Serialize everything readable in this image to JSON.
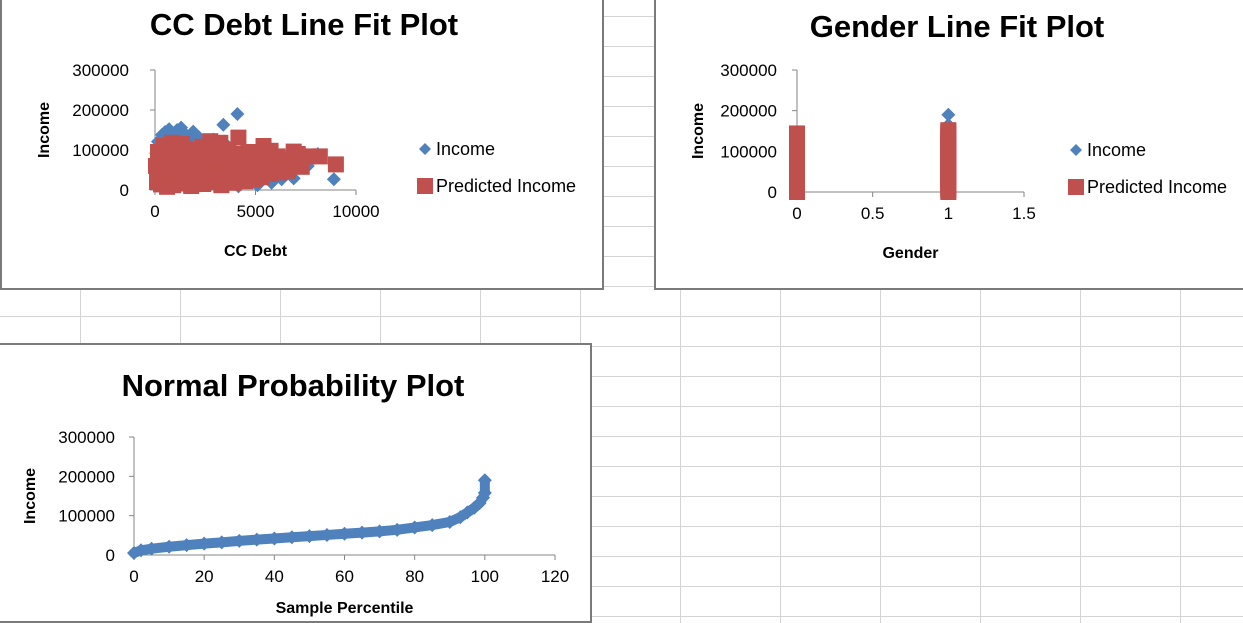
{
  "colors": {
    "income_marker": "#4f81bd",
    "predicted_marker": "#c0504d",
    "axis": "#868686",
    "text": "#000000"
  },
  "chart_data": [
    {
      "type": "scatter",
      "title": "CC Debt Line Fit  Plot",
      "xlabel": "CC Debt",
      "ylabel": "Income",
      "xlim": [
        0,
        10000
      ],
      "ylim": [
        0,
        300000
      ],
      "xticks": [
        "0",
        "5000",
        "10000"
      ],
      "yticks": [
        "300000",
        "200000",
        "100000",
        "0"
      ],
      "legend": "right",
      "series": [
        {
          "name": "Income",
          "marker": "diamond",
          "points": [
            [
              60,
              92000
            ],
            [
              150,
              121000
            ],
            [
              250,
              110000
            ],
            [
              350,
              138000
            ],
            [
              500,
              145000
            ],
            [
              700,
              152000
            ],
            [
              900,
              137000
            ],
            [
              1100,
              150000
            ],
            [
              1300,
              156000
            ],
            [
              1500,
              140000
            ],
            [
              1700,
              128000
            ],
            [
              1900,
              146000
            ],
            [
              2200,
              131000
            ],
            [
              2500,
              122000
            ],
            [
              2900,
              126000
            ],
            [
              3400,
              163000
            ],
            [
              3800,
              80000
            ],
            [
              4100,
              190000
            ],
            [
              4500,
              101000
            ],
            [
              5200,
              60000
            ],
            [
              5600,
              73000
            ],
            [
              6100,
              52000
            ],
            [
              6600,
              46000
            ],
            [
              7100,
              71000
            ],
            [
              7600,
              60000
            ],
            [
              8100,
              90000
            ],
            [
              8900,
              27000
            ],
            [
              100,
              42000
            ],
            [
              300,
              61000
            ],
            [
              450,
              30000
            ],
            [
              650,
              76000
            ],
            [
              800,
              20000
            ],
            [
              950,
              52000
            ],
            [
              1150,
              88000
            ],
            [
              1350,
              35000
            ],
            [
              1550,
              70000
            ],
            [
              1750,
              12000
            ],
            [
              1950,
              56000
            ],
            [
              2150,
              94000
            ],
            [
              2350,
              26000
            ],
            [
              2550,
              63000
            ],
            [
              2750,
              40000
            ],
            [
              2950,
              82000
            ],
            [
              3150,
              17000
            ],
            [
              3350,
              49000
            ],
            [
              3550,
              69000
            ],
            [
              3750,
              31000
            ],
            [
              3950,
              58000
            ],
            [
              4150,
              9000
            ],
            [
              4350,
              44000
            ],
            [
              4650,
              66000
            ],
            [
              4900,
              22000
            ],
            [
              5100,
              12000
            ],
            [
              5400,
              35000
            ],
            [
              5800,
              18000
            ],
            [
              6300,
              27000
            ],
            [
              6900,
              29000
            ],
            [
              7400,
              55000
            ],
            [
              200,
              18000
            ],
            [
              550,
              95000
            ],
            [
              850,
              118000
            ],
            [
              1250,
              106000
            ],
            [
              1650,
              96000
            ],
            [
              2050,
              78000
            ],
            [
              2450,
              104000
            ],
            [
              2850,
              98000
            ],
            [
              3250,
              88000
            ],
            [
              3650,
              108000
            ],
            [
              4050,
              92000
            ],
            [
              4550,
              84000
            ]
          ]
        },
        {
          "name": "Predicted Income",
          "marker": "square",
          "points": [
            [
              50,
              60000
            ],
            [
              150,
              95000
            ],
            [
              250,
              42000
            ],
            [
              350,
              78000
            ],
            [
              450,
              110000
            ],
            [
              550,
              32000
            ],
            [
              650,
              88000
            ],
            [
              750,
              52000
            ],
            [
              850,
              118000
            ],
            [
              950,
              68000
            ],
            [
              1050,
              28000
            ],
            [
              1150,
              98000
            ],
            [
              1250,
              61000
            ],
            [
              1350,
              115000
            ],
            [
              1450,
              40000
            ],
            [
              1550,
              85000
            ],
            [
              1650,
              54000
            ],
            [
              1750,
              102000
            ],
            [
              1850,
              36000
            ],
            [
              1950,
              73000
            ],
            [
              2050,
              94000
            ],
            [
              2150,
              47000
            ],
            [
              2250,
              66000
            ],
            [
              2350,
              108000
            ],
            [
              2450,
              30000
            ],
            [
              2550,
              83000
            ],
            [
              2650,
              57000
            ],
            [
              2750,
              122000
            ],
            [
              2850,
              44000
            ],
            [
              2950,
              71000
            ],
            [
              3050,
              96000
            ],
            [
              3150,
              38000
            ],
            [
              3250,
              118000
            ],
            [
              3350,
              64000
            ],
            [
              3450,
              82000
            ],
            [
              3550,
              46000
            ],
            [
              3650,
              100000
            ],
            [
              3750,
              58000
            ],
            [
              3850,
              74000
            ],
            [
              3950,
              33000
            ],
            [
              4050,
              90000
            ],
            [
              4150,
              131000
            ],
            [
              4250,
              52000
            ],
            [
              4350,
              86000
            ],
            [
              4450,
              68000
            ],
            [
              4550,
              44000
            ],
            [
              4650,
              95000
            ],
            [
              4800,
              60000
            ],
            [
              5000,
              75000
            ],
            [
              5200,
              50000
            ],
            [
              5400,
              110000
            ],
            [
              5600,
              66000
            ],
            [
              5750,
              98000
            ],
            [
              5900,
              55000
            ],
            [
              6100,
              84000
            ],
            [
              6300,
              70000
            ],
            [
              6500,
              62000
            ],
            [
              6700,
              78000
            ],
            [
              6900,
              96000
            ],
            [
              7100,
              90000
            ],
            [
              7300,
              58000
            ],
            [
              7600,
              84000
            ],
            [
              8200,
              84000
            ],
            [
              9000,
              64000
            ],
            [
              100,
              20000
            ],
            [
              300,
              14000
            ],
            [
              600,
              8000
            ],
            [
              900,
              12000
            ],
            [
              1200,
              16000
            ],
            [
              1500,
              22000
            ],
            [
              1800,
              10000
            ],
            [
              2100,
              18000
            ],
            [
              2400,
              15000
            ],
            [
              2700,
              20000
            ],
            [
              3000,
              24000
            ],
            [
              3300,
              12000
            ],
            [
              3600,
              28000
            ],
            [
              3900,
              18000
            ],
            [
              4200,
              30000
            ],
            [
              4500,
              22000
            ],
            [
              4900,
              26000
            ],
            [
              5300,
              32000
            ],
            [
              5700,
              40000
            ],
            [
              6200,
              44000
            ],
            [
              6600,
              48000
            ]
          ]
        }
      ]
    },
    {
      "type": "scatter",
      "title": "Gender Line Fit  Plot",
      "xlabel": "Gender",
      "ylabel": "Income",
      "xlim": [
        0,
        1.5
      ],
      "ylim": [
        0,
        300000
      ],
      "xticks": [
        "0",
        "0.5",
        "1",
        "1.5"
      ],
      "yticks": [
        "300000",
        "200000",
        "100000",
        "0"
      ],
      "legend": "right",
      "series": [
        {
          "name": "Income",
          "marker": "diamond",
          "points": [
            [
              0,
              148000
            ],
            [
              0,
              120000
            ],
            [
              0,
              96000
            ],
            [
              0,
              72000
            ],
            [
              0,
              50000
            ],
            [
              0,
              30000
            ],
            [
              0,
              10000
            ],
            [
              1,
              190000
            ],
            [
              1,
              165000
            ],
            [
              1,
              130000
            ],
            [
              1,
              105000
            ],
            [
              1,
              80000
            ],
            [
              1,
              55000
            ],
            [
              1,
              30000
            ],
            [
              1,
              6000
            ]
          ]
        },
        {
          "name": "Predicted Income",
          "marker": "square",
          "range": "bar",
          "points": [
            [
              0,
              0
            ],
            [
              0,
              145000
            ],
            [
              1,
              0
            ],
            [
              1,
              155000
            ]
          ]
        }
      ]
    },
    {
      "type": "line",
      "title": "Normal Probability Plot",
      "xlabel": "Sample Percentile",
      "ylabel": "Income",
      "xlim": [
        0,
        120
      ],
      "ylim": [
        0,
        300000
      ],
      "xticks": [
        "0",
        "20",
        "40",
        "60",
        "80",
        "100",
        "120"
      ],
      "yticks": [
        "300000",
        "200000",
        "100000",
        "0"
      ],
      "series": [
        {
          "name": "Income",
          "marker": "diamond",
          "points": [
            [
              0,
              5000
            ],
            [
              2,
              12000
            ],
            [
              5,
              16000
            ],
            [
              10,
              21000
            ],
            [
              15,
              25000
            ],
            [
              20,
              29000
            ],
            [
              25,
              32000
            ],
            [
              30,
              36000
            ],
            [
              35,
              39000
            ],
            [
              40,
              42000
            ],
            [
              45,
              45000
            ],
            [
              50,
              48000
            ],
            [
              55,
              51000
            ],
            [
              60,
              54000
            ],
            [
              65,
              57000
            ],
            [
              70,
              60000
            ],
            [
              75,
              64000
            ],
            [
              80,
              70000
            ],
            [
              85,
              76000
            ],
            [
              90,
              84000
            ],
            [
              93,
              96000
            ],
            [
              95,
              108000
            ],
            [
              97,
              120000
            ],
            [
              98.5,
              132000
            ],
            [
              99.5,
              146000
            ],
            [
              100,
              158000
            ],
            [
              100,
              190000
            ]
          ]
        }
      ]
    }
  ]
}
